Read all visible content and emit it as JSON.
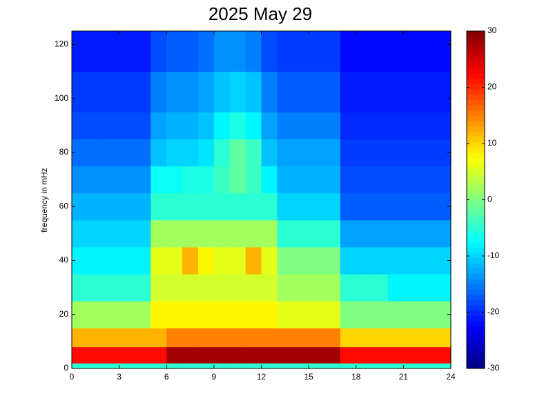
{
  "chart_data": {
    "type": "heatmap",
    "title": "2025 May 29",
    "y_label": "frequency in mHz",
    "colormap": "jet",
    "x": [
      0,
      1,
      2,
      3,
      4,
      5,
      6,
      7,
      8,
      9,
      10,
      11,
      12,
      13,
      14,
      15,
      16,
      17,
      18,
      19,
      20,
      21,
      22,
      23,
      24
    ],
    "y": [
      0,
      2,
      8,
      15,
      25,
      35,
      45,
      55,
      65,
      75,
      85,
      95,
      110,
      125
    ],
    "z": [
      [
        -5,
        -5,
        -5,
        -5,
        -5,
        -5,
        -5,
        -5,
        -5,
        -5,
        -5,
        -5,
        -5,
        -5,
        -5,
        -5,
        -5,
        -5,
        -5,
        -5,
        -5,
        -5,
        -5,
        -5
      ],
      [
        22,
        22,
        22,
        22,
        22,
        22,
        28,
        28,
        28,
        28,
        28,
        28,
        28,
        28,
        28,
        28,
        28,
        22,
        22,
        22,
        22,
        22,
        22,
        22
      ],
      [
        12,
        12,
        12,
        12,
        12,
        12,
        15,
        15,
        15,
        15,
        15,
        15,
        15,
        15,
        15,
        15,
        15,
        10,
        10,
        10,
        10,
        10,
        10,
        10
      ],
      [
        2,
        2,
        2,
        2,
        2,
        8,
        8,
        8,
        8,
        8,
        8,
        8,
        8,
        6,
        6,
        6,
        6,
        0,
        0,
        0,
        0,
        0,
        0,
        0
      ],
      [
        -5,
        -5,
        -5,
        -5,
        -5,
        5,
        5,
        5,
        5,
        5,
        5,
        5,
        5,
        2,
        2,
        2,
        2,
        -5,
        -5,
        -5,
        -8,
        -8,
        -8,
        -8
      ],
      [
        -8,
        -8,
        -8,
        -8,
        -8,
        6,
        6,
        12,
        8,
        6,
        6,
        12,
        6,
        0,
        0,
        0,
        0,
        -10,
        -10,
        -10,
        -10,
        -10,
        -10,
        -10
      ],
      [
        -10,
        -10,
        -10,
        -10,
        -10,
        2,
        2,
        2,
        2,
        2,
        2,
        2,
        2,
        -5,
        -5,
        -5,
        -5,
        -13,
        -13,
        -13,
        -13,
        -13,
        -13,
        -13
      ],
      [
        -12,
        -12,
        -12,
        -12,
        -12,
        -5,
        -5,
        -5,
        -5,
        -5,
        -5,
        -5,
        -5,
        -10,
        -10,
        -10,
        -10,
        -17,
        -17,
        -17,
        -17,
        -17,
        -17,
        -17
      ],
      [
        -14,
        -14,
        -14,
        -14,
        -14,
        -7,
        -7,
        -6,
        -6,
        -4,
        -2,
        -4,
        -8,
        -12,
        -12,
        -12,
        -12,
        -18,
        -18,
        -18,
        -18,
        -18,
        -18,
        -18
      ],
      [
        -16,
        -16,
        -16,
        -16,
        -16,
        -11,
        -10,
        -10,
        -9,
        -5,
        -2,
        -4,
        -11,
        -13,
        -13,
        -13,
        -13,
        -19,
        -19,
        -19,
        -19,
        -19,
        -19,
        -19
      ],
      [
        -18,
        -18,
        -18,
        -18,
        -18,
        -13,
        -12,
        -12,
        -11,
        -8,
        -6,
        -8,
        -13,
        -15,
        -15,
        -15,
        -15,
        -20,
        -20,
        -20,
        -20,
        -20,
        -20,
        -20
      ],
      [
        -19,
        -19,
        -19,
        -19,
        -19,
        -15,
        -14,
        -14,
        -13,
        -11,
        -10,
        -11,
        -15,
        -17,
        -17,
        -17,
        -17,
        -21,
        -21,
        -21,
        -21,
        -21,
        -21,
        -21
      ],
      [
        -21,
        -21,
        -21,
        -21,
        -21,
        -18,
        -17,
        -17,
        -16,
        -14,
        -14,
        -15,
        -18,
        -19,
        -19,
        -19,
        -19,
        -22,
        -22,
        -22,
        -22,
        -22,
        -22,
        -22
      ]
    ],
    "xlim": [
      0,
      24
    ],
    "xticks": [
      0,
      3,
      6,
      9,
      12,
      15,
      18,
      21,
      24
    ],
    "ylim": [
      0,
      125
    ],
    "yticks": [
      0,
      20,
      40,
      60,
      80,
      100,
      120
    ],
    "clim": [
      -30,
      30
    ],
    "cticks": [
      -30,
      -20,
      -10,
      0,
      10,
      20,
      30
    ]
  }
}
